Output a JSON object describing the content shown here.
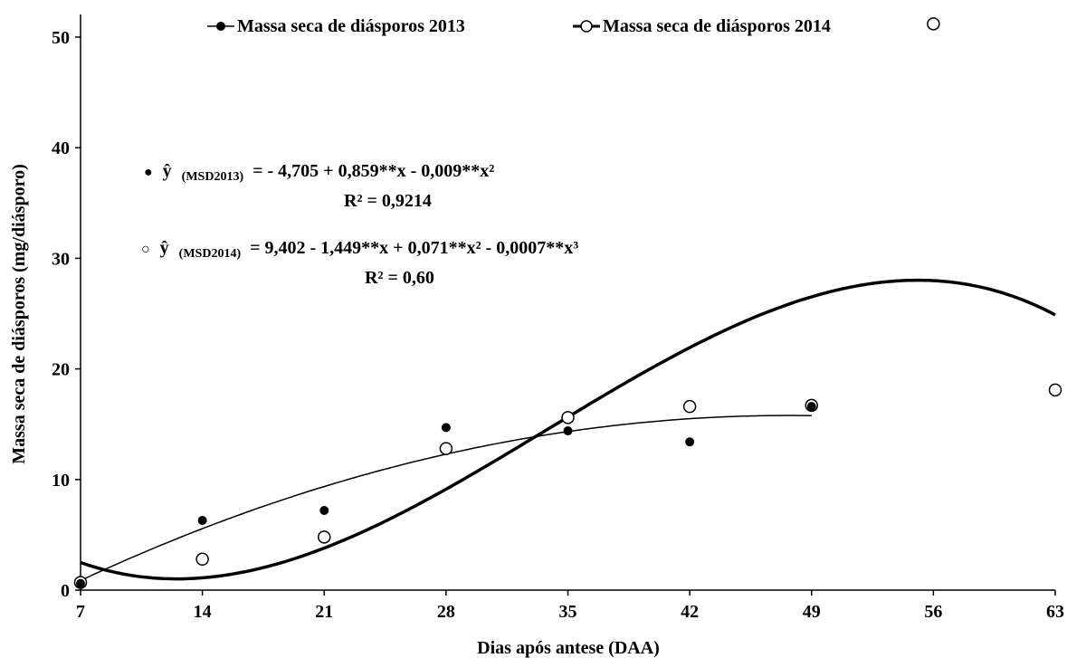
{
  "chart_data": {
    "type": "scatter",
    "title": "",
    "xlabel": "Dias após antese (DAA)",
    "ylabel": "Massa seca de diásporos (mg/diásporo)",
    "xlim": [
      7,
      63
    ],
    "ylim": [
      0,
      50
    ],
    "x_ticks": [
      7,
      14,
      21,
      28,
      35,
      42,
      49,
      56,
      63
    ],
    "y_ticks": [
      0,
      10,
      20,
      30,
      40,
      50
    ],
    "grid": false,
    "legend": "top",
    "series": [
      {
        "name": "Massa seca de diásporos 2013",
        "marker": "filled-circle",
        "x": [
          7,
          14,
          21,
          28,
          35,
          42,
          49
        ],
        "y": [
          0.6,
          6.3,
          7.2,
          14.7,
          14.4,
          13.4,
          16.6
        ],
        "fit": {
          "type": "quadratic",
          "coefficients": [
            -4.705,
            0.859,
            -0.009
          ],
          "x_range": [
            7,
            49
          ]
        }
      },
      {
        "name": "Massa seca de diásporos 2014",
        "marker": "open-circle",
        "x": [
          7,
          14,
          21,
          28,
          35,
          42,
          49,
          56,
          63
        ],
        "y": [
          0.7,
          2.8,
          4.8,
          12.8,
          15.6,
          16.6,
          16.7,
          51.2,
          18.1
        ],
        "fit": {
          "type": "cubic",
          "coefficients": [
            9.402,
            -1.449,
            0.071,
            -0.0007
          ],
          "x_range": [
            7,
            63
          ]
        }
      }
    ],
    "annotations": [
      {
        "symbol": "●",
        "y_hat": "ŷ",
        "subscript": "(MSD2013)",
        "equation": "= - 4,705 + 0,859**x - 0,009**x²",
        "r2": "R² = 0,9214"
      },
      {
        "symbol": "○",
        "y_hat": "ŷ",
        "subscript": "(MSD2014)",
        "equation": "= 9,402 - 1,449**x + 0,071**x² - 0,0007**x³",
        "r2": "R² = 0,60"
      }
    ]
  }
}
